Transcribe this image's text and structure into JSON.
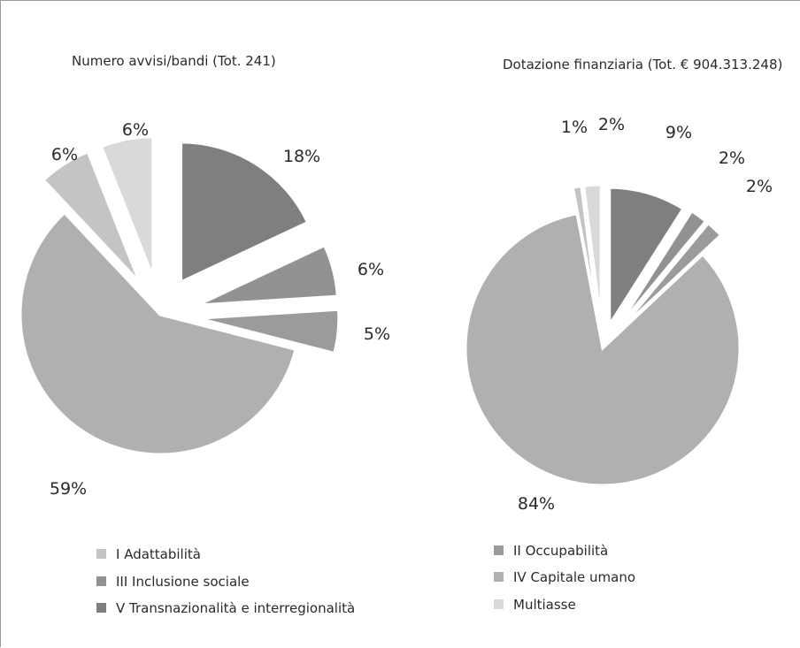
{
  "chart_data": [
    {
      "type": "pie",
      "title": "Numero avvisi/bandi (Tot. 241)",
      "slices": [
        {
          "name": "V Transnazionalità e interregionalità",
          "value": 18,
          "label": "18%",
          "color": "#7f7f81"
        },
        {
          "name": "III Inclusione sociale",
          "value": 6,
          "label": "6%",
          "color": "#929294"
        },
        {
          "name": "II Occupabilità",
          "value": 5,
          "label": "5%",
          "color": "#9b9b9d"
        },
        {
          "name": "IV Capitale umano",
          "value": 59,
          "label": "59%",
          "color": "#b0b0b2"
        },
        {
          "name": "I Adattabilità",
          "value": 6,
          "label": "6%",
          "color": "#c4c4c6"
        },
        {
          "name": "Multiasse",
          "value": 6,
          "label": "6%",
          "color": "#d9d9db"
        }
      ]
    },
    {
      "type": "pie",
      "title": "Dotazione finanziaria (Tot. € 904.313.248)",
      "slices": [
        {
          "name": "V Transnazionalità e interregionalità",
          "value": 9,
          "label": "9%",
          "color": "#7f7f81"
        },
        {
          "name": "III Inclusione sociale",
          "value": 2,
          "label": "2%",
          "color": "#929294"
        },
        {
          "name": "II Occupabilità",
          "value": 2,
          "label": "2%",
          "color": "#9b9b9d"
        },
        {
          "name": "IV Capitale umano",
          "value": 84,
          "label": "84%",
          "color": "#b0b0b2"
        },
        {
          "name": "I Adattabilità",
          "value": 1,
          "label": "1%",
          "color": "#c4c4c6"
        },
        {
          "name": "Multiasse",
          "value": 2,
          "label": "2%",
          "color": "#d9d9db"
        }
      ]
    }
  ],
  "legend": [
    {
      "label": "I Adattabilità",
      "color": "#c4c4c6"
    },
    {
      "label": "III Inclusione sociale",
      "color": "#929294"
    },
    {
      "label": "V Transnazionalità e interregionalità",
      "color": "#7f7f81"
    },
    {
      "label": "II Occupabilità",
      "color": "#9b9b9d"
    },
    {
      "label": "IV Capitale umano",
      "color": "#b0b0b2"
    },
    {
      "label": "Multiasse",
      "color": "#d9d9db"
    }
  ]
}
